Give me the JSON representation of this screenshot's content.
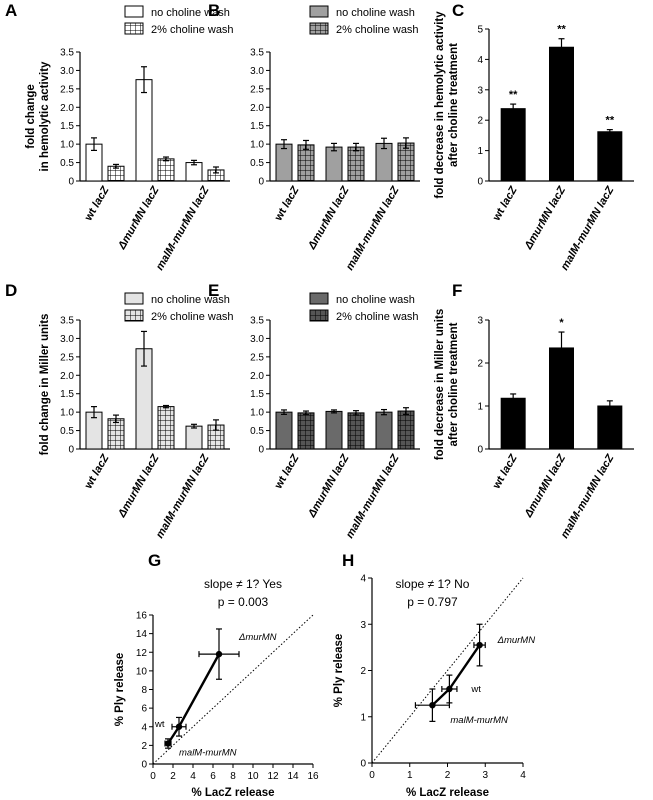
{
  "patterns": {
    "white": "#ffffff",
    "gray": "#a0a0a0",
    "light": "#e4e4e4",
    "dark": "#6a6a6a",
    "black": "#000000"
  },
  "chart_data": [
    {
      "id": "A",
      "panel": "A",
      "type": "bar",
      "ylabel": [
        "fold change",
        "in hemolytic activity"
      ],
      "categories": [
        "wt lacZ",
        "ΔmurMN lacZ",
        "malM-murMN lacZ"
      ],
      "ylim": [
        0,
        3.5
      ],
      "yticks": [
        "0",
        "0.5",
        "1.0",
        "1.5",
        "2.0",
        "2.5",
        "3.0",
        "3.5"
      ],
      "series": [
        {
          "name": "no choline wash",
          "fill": "white",
          "values": [
            1.0,
            2.75,
            0.5
          ],
          "errors": [
            0.17,
            0.35,
            0.06
          ]
        },
        {
          "name": "2% choline wash",
          "fill": "white-grid",
          "values": [
            0.4,
            0.6,
            0.3
          ],
          "errors": [
            0.05,
            0.05,
            0.08
          ]
        }
      ]
    },
    {
      "id": "B",
      "panel": "B",
      "type": "bar",
      "ylabel": [],
      "categories": [
        "wt lacZ",
        "ΔmurMN lacZ",
        "malM-murMN lacZ"
      ],
      "ylim": [
        0,
        3.5
      ],
      "yticks": [
        "0",
        "0.5",
        "1.0",
        "1.5",
        "2.0",
        "2.5",
        "3.0",
        "3.5"
      ],
      "series": [
        {
          "name": "no choline wash",
          "fill": "gray",
          "values": [
            1.0,
            0.92,
            1.02
          ],
          "errors": [
            0.12,
            0.1,
            0.14
          ]
        },
        {
          "name": "2% choline wash",
          "fill": "gray-grid",
          "values": [
            0.98,
            0.92,
            1.03
          ],
          "errors": [
            0.12,
            0.1,
            0.14
          ]
        }
      ]
    },
    {
      "id": "C",
      "panel": "C",
      "type": "bar",
      "ylabel": [
        "fold decrease in hemolytic activity",
        "after choline treatment"
      ],
      "categories": [
        "wt lacZ",
        "ΔmurMN lacZ",
        "malM-murMN lacZ"
      ],
      "ylim": [
        0,
        5
      ],
      "yticks": [
        "0",
        "1",
        "2",
        "3",
        "4",
        "5"
      ],
      "series": [
        {
          "name": "",
          "fill": "black",
          "values": [
            2.38,
            4.4,
            1.62
          ],
          "errors": [
            0.15,
            0.28,
            0.07
          ]
        }
      ],
      "annotations": [
        "**",
        "**",
        "**"
      ]
    },
    {
      "id": "D",
      "panel": "D",
      "type": "bar",
      "ylabel": [
        "fold change in Miller units"
      ],
      "categories": [
        "wt lacZ",
        "ΔmurMN lacZ",
        "malM-murMN lacZ"
      ],
      "ylim": [
        0,
        3.5
      ],
      "yticks": [
        "0",
        "0.5",
        "1.0",
        "1.5",
        "2.0",
        "2.5",
        "3.0",
        "3.5"
      ],
      "series": [
        {
          "name": "no choline wash",
          "fill": "light",
          "values": [
            1.0,
            2.72,
            0.62
          ],
          "errors": [
            0.15,
            0.47,
            0.05
          ]
        },
        {
          "name": "2% choline wash",
          "fill": "light-grid",
          "values": [
            0.82,
            1.15,
            0.65
          ],
          "errors": [
            0.1,
            0.03,
            0.14
          ]
        }
      ]
    },
    {
      "id": "E",
      "panel": "E",
      "type": "bar",
      "ylabel": [],
      "categories": [
        "wt lacZ",
        "ΔmurMN lacZ",
        "malM-murMN lacZ"
      ],
      "ylim": [
        0,
        3.5
      ],
      "yticks": [
        "0",
        "0.5",
        "1.0",
        "1.5",
        "2.0",
        "2.5",
        "3.0",
        "3.5"
      ],
      "series": [
        {
          "name": "no choline wash",
          "fill": "dark",
          "values": [
            1.0,
            1.02,
            1.0
          ],
          "errors": [
            0.06,
            0.04,
            0.07
          ]
        },
        {
          "name": "2% choline wash",
          "fill": "dark-grid",
          "values": [
            0.98,
            0.98,
            1.03
          ],
          "errors": [
            0.05,
            0.06,
            0.09
          ]
        }
      ]
    },
    {
      "id": "F",
      "panel": "F",
      "type": "bar",
      "ylabel": [
        "fold decrease in Miller units",
        "after choline treatment"
      ],
      "categories": [
        "wt lacZ",
        "ΔmurMN lacZ",
        "malM-murMN lacZ"
      ],
      "ylim": [
        0,
        3
      ],
      "yticks": [
        "0",
        "1",
        "2",
        "3"
      ],
      "series": [
        {
          "name": "",
          "fill": "black",
          "values": [
            1.18,
            2.35,
            1.0
          ],
          "errors": [
            0.1,
            0.37,
            0.12
          ]
        }
      ],
      "annotations": [
        "",
        "*",
        ""
      ]
    },
    {
      "id": "G",
      "panel": "G",
      "type": "scatter",
      "title": [
        "slope ≠ 1? Yes",
        "p = 0.003"
      ],
      "xlabel": "% LacZ release",
      "ylabel": "% Ply release",
      "xlim": [
        0,
        16
      ],
      "ylim": [
        0,
        16
      ],
      "xticks": [
        "0",
        "2",
        "4",
        "6",
        "8",
        "10",
        "12",
        "14",
        "16"
      ],
      "yticks": [
        "0",
        "2",
        "4",
        "6",
        "8",
        "10",
        "12",
        "14",
        "16"
      ],
      "points": [
        {
          "label": "malM-murMN",
          "x": 1.5,
          "y": 2.2,
          "xerr": 0.3,
          "yerr": 0.5
        },
        {
          "label": "wt",
          "x": 2.6,
          "y": 4.0,
          "xerr": 0.7,
          "yerr": 1.0
        },
        {
          "label": "ΔmurMN",
          "x": 6.6,
          "y": 11.8,
          "xerr": 2.0,
          "yerr": 2.7
        }
      ]
    },
    {
      "id": "H",
      "panel": "H",
      "type": "scatter",
      "title": [
        "slope ≠ 1? No",
        "p = 0.797"
      ],
      "xlabel": "% LacZ release",
      "ylabel": "% Ply release",
      "xlim": [
        0,
        4
      ],
      "ylim": [
        0,
        4
      ],
      "xticks": [
        "0",
        "1",
        "2",
        "3",
        "4"
      ],
      "yticks": [
        "0",
        "1",
        "2",
        "3",
        "4"
      ],
      "points": [
        {
          "label": "malM-murMN",
          "x": 1.6,
          "y": 1.25,
          "xerr": 0.45,
          "yerr": 0.35
        },
        {
          "label": "wt",
          "x": 2.05,
          "y": 1.6,
          "xerr": 0.2,
          "yerr": 0.3
        },
        {
          "label": "ΔmurMN",
          "x": 2.85,
          "y": 2.55,
          "xerr": 0.15,
          "yerr": 0.45
        }
      ]
    }
  ]
}
